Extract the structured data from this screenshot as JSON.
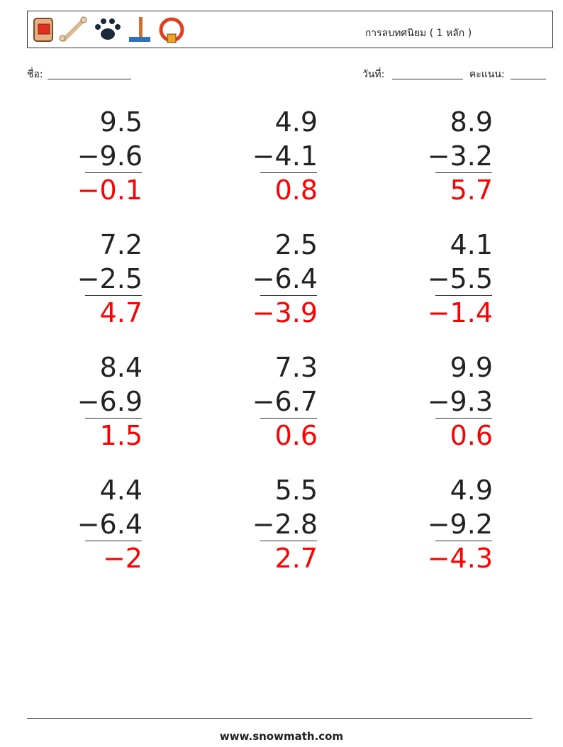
{
  "header": {
    "title": "การลบทศนิยม ( 1 หลัก )"
  },
  "fields": {
    "name": "ชื่อ:",
    "date": "วันที่:",
    "score": "คะแนน:"
  },
  "problems": [
    {
      "top": "9.5",
      "bottom": "−9.6",
      "answer": "−0.1"
    },
    {
      "top": "4.9",
      "bottom": "−4.1",
      "answer": "0.8"
    },
    {
      "top": "8.9",
      "bottom": "−3.2",
      "answer": "5.7"
    },
    {
      "top": "7.2",
      "bottom": "−2.5",
      "answer": "4.7"
    },
    {
      "top": "2.5",
      "bottom": "−6.4",
      "answer": "−3.9"
    },
    {
      "top": "4.1",
      "bottom": "−5.5",
      "answer": "−1.4"
    },
    {
      "top": "8.4",
      "bottom": "−6.9",
      "answer": "1.5"
    },
    {
      "top": "7.3",
      "bottom": "−6.7",
      "answer": "0.6"
    },
    {
      "top": "9.9",
      "bottom": "−9.3",
      "answer": "0.6"
    },
    {
      "top": "4.4",
      "bottom": "−6.4",
      "answer": "−2"
    },
    {
      "top": "5.5",
      "bottom": "−2.8",
      "answer": "2.7"
    },
    {
      "top": "4.9",
      "bottom": "−9.2",
      "answer": "−4.3"
    }
  ],
  "footer": {
    "site": "www.snowmath.com"
  }
}
